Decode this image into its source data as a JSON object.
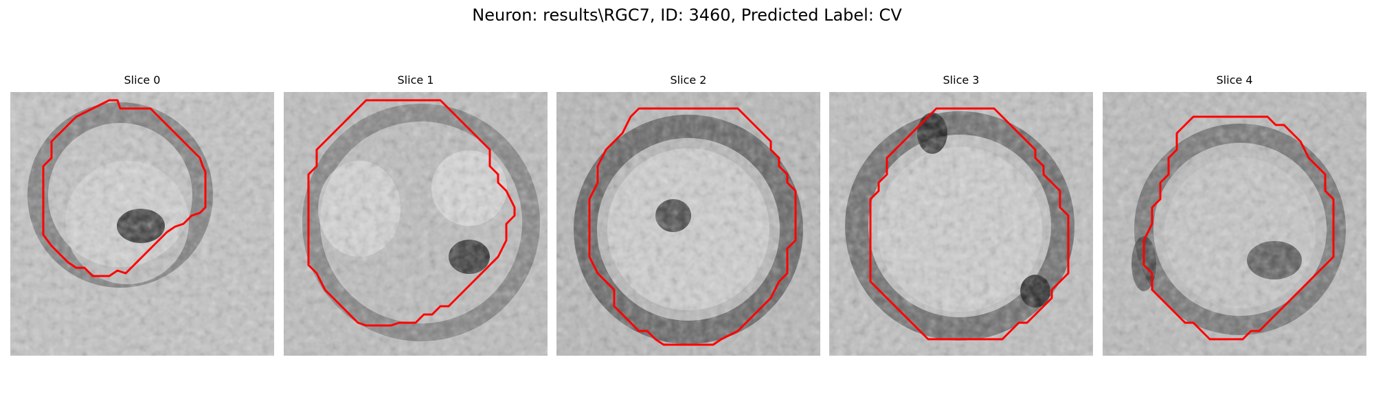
{
  "figure": {
    "title": "Neuron: results\\RGC7, ID: 3460, Predicted Label: CV"
  },
  "panels": [
    {
      "title": "Slice 0"
    },
    {
      "title": "Slice 1"
    },
    {
      "title": "Slice 2"
    },
    {
      "title": "Slice 3"
    },
    {
      "title": "Slice 4"
    }
  ],
  "colors": {
    "contour": "#ff0000",
    "background": "#ffffff"
  }
}
